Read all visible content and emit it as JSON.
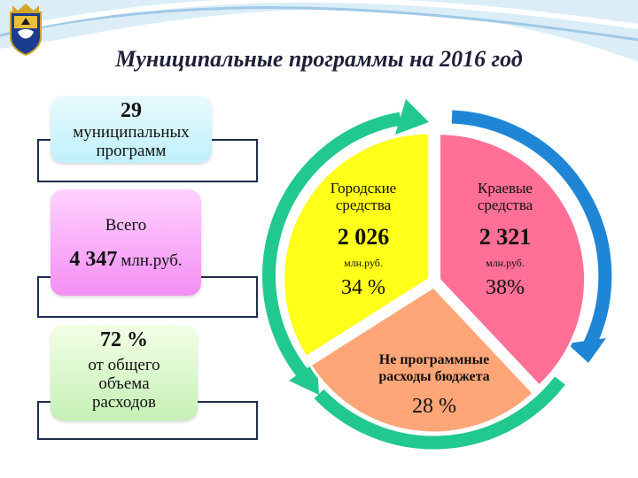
{
  "page": {
    "title": "Муниципальные программы на 2016 год"
  },
  "left_cards": {
    "card1": {
      "number": "29",
      "text_line1": "муниципальных",
      "text_line2": "программ"
    },
    "card2": {
      "label": "Всего",
      "amount": "4 347",
      "unit": "млн.руб."
    },
    "card3": {
      "percent": "72 %",
      "line1": "от общего",
      "line2": "объема",
      "line3": "расходов"
    }
  },
  "chart_data": {
    "type": "pie",
    "slices": [
      {
        "label_line1": "Городские",
        "label_line2": "средства",
        "amount": "2 026",
        "unit": "млн.руб.",
        "percent_label": "34 %",
        "value": 34,
        "color": "#ffff1a"
      },
      {
        "label_line1": "Краевые",
        "label_line2": "средства",
        "amount": "2 321",
        "unit": "млн.руб.",
        "percent_label": "38%",
        "value": 38,
        "color": "#ff6f96"
      },
      {
        "label_line1": "Не программные",
        "label_line2": "расходы бюджета",
        "amount": "",
        "unit": "",
        "percent_label": "28 %",
        "value": 28,
        "color": "#ffa678"
      }
    ]
  },
  "colors": {
    "arrow_green": "#22c98f",
    "arrow_blue": "#1f86d6"
  }
}
